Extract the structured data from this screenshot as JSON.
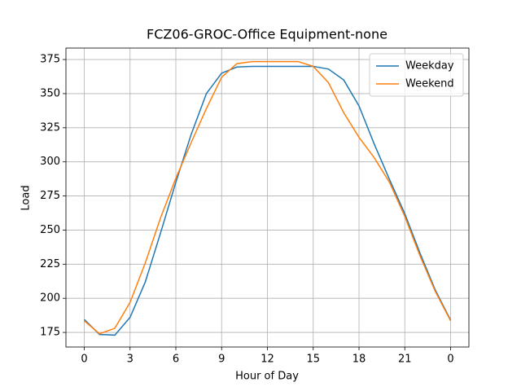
{
  "chart_data": {
    "type": "line",
    "title": "FCZ06-GROC-Office Equipment-none",
    "xlabel": "Hour of Day",
    "ylabel": "Load",
    "x": [
      0,
      1,
      2,
      3,
      4,
      5,
      6,
      7,
      8,
      9,
      10,
      11,
      12,
      13,
      14,
      15,
      16,
      17,
      18,
      19,
      20,
      21,
      22,
      23,
      24
    ],
    "series": [
      {
        "name": "Weekday",
        "color": "#1f77b4",
        "values": [
          184.5,
          173.5,
          173,
          186,
          212,
          248,
          285,
          320,
          350,
          365,
          369.5,
          370,
          370,
          370,
          370,
          370,
          368,
          360,
          341,
          313,
          287,
          262,
          233,
          206,
          184
        ]
      },
      {
        "name": "Weekend",
        "color": "#ff7f0e",
        "values": [
          183.5,
          174,
          178,
          197,
          226,
          259,
          288,
          314,
          339,
          362,
          372,
          373.5,
          373.5,
          373.5,
          373.5,
          370,
          358,
          336,
          318,
          303,
          285,
          260,
          231,
          205,
          183.5
        ]
      }
    ],
    "xlim": [
      -1.2,
      25.2
    ],
    "ylim": [
      164.3,
      383.4
    ],
    "xticks": [
      0,
      3,
      6,
      9,
      12,
      15,
      18,
      21,
      {
        "value": 24,
        "label": "0"
      }
    ],
    "yticks": [
      175,
      200,
      225,
      250,
      275,
      300,
      325,
      350,
      375
    ],
    "grid": true,
    "legend": "upper right"
  }
}
